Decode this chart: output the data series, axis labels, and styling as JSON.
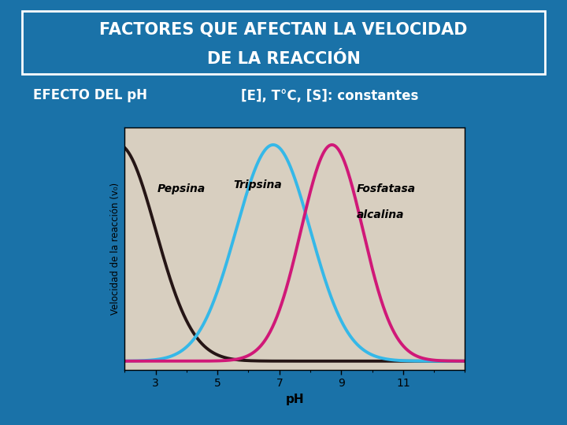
{
  "title_line1": "FACTORES QUE AFECTAN LA VELOCIDAD",
  "title_line2": "DE LA REACCIÓN",
  "subtitle_left": "EFECTO DEL pH",
  "subtitle_right": "[E], T°C, [S]: constantes",
  "bg_color": "#1a72a8",
  "title_text_color": "#ffffff",
  "subtitle_text_color": "#ffffff",
  "plot_bg_color": "#d8cfc0",
  "xlabel": "pH",
  "ylabel": "Velocidad de la reacción (v₀)",
  "xticks": [
    3,
    5,
    7,
    9,
    11
  ],
  "pepsina_color": "#251515",
  "tripsina_color": "#35b8e8",
  "fosfatasa_color": "#d01878",
  "pepsina_peak": 1.8,
  "pepsina_std": 1.2,
  "tripsina_peak": 6.8,
  "tripsina_std": 1.2,
  "fosfatasa_peak": 8.7,
  "fosfatasa_std": 1.0,
  "pepsina_label": "Pepsina",
  "tripsina_label": "Tripsina",
  "fosfatasa_label1": "Fosfatasa",
  "fosfatasa_label2": "alcalina",
  "xmin": 2.0,
  "xmax": 13.0,
  "title_fontsize": 15,
  "subtitle_fontsize": 12,
  "label_fontsize": 9
}
